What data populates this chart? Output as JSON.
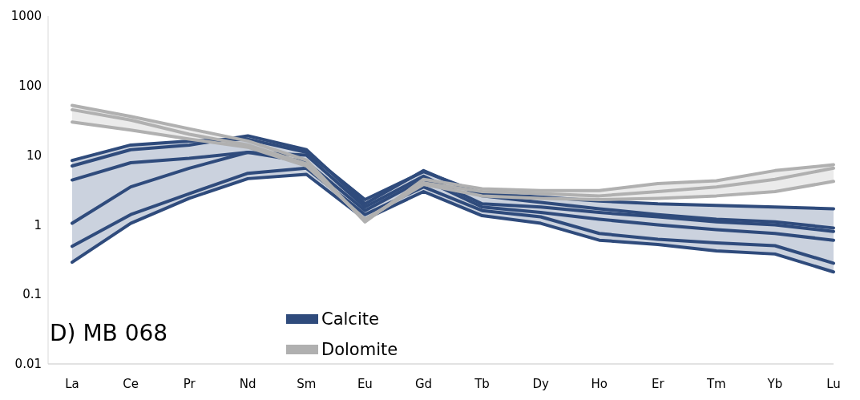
{
  "chart_data": {
    "type": "line",
    "log": true,
    "categories": [
      "La",
      "Ce",
      "Pr",
      "Nd",
      "Sm",
      "Eu",
      "Gd",
      "Tb",
      "Dy",
      "Ho",
      "Er",
      "Tm",
      "Yb",
      "Lu"
    ],
    "ylim": [
      0.01,
      1000
    ],
    "yticks": [
      0.01,
      0.1,
      1,
      10,
      100,
      1000
    ],
    "grid": false,
    "legend": "bottom left",
    "marker": "none",
    "line_style": "solid",
    "annotations": [
      "D) MB 068"
    ],
    "series": [
      {
        "name": "Calcite",
        "color": "#2f4b7c",
        "values": [
          8.4,
          14,
          16,
          17,
          11,
          2.3,
          5.8,
          2.8,
          2.5,
          2.2,
          2.0,
          1.9,
          1.8,
          1.7
        ],
        "lower": [
          0.29,
          1.05,
          2.4,
          4.6,
          5.3,
          1.2,
          3.0,
          1.35,
          1.05,
          0.6,
          0.52,
          0.42,
          0.38,
          0.21
        ],
        "upper": [
          8.4,
          14,
          16,
          19,
          12,
          2.3,
          6,
          2.8,
          2.5,
          2.2,
          2.0,
          1.9,
          1.8,
          1.7
        ]
      },
      {
        "color": "#2f4b7c",
        "values": [
          7,
          12,
          14,
          19,
          12,
          2.0,
          6,
          2.6,
          2.1,
          1.7,
          1.4,
          1.2,
          1.1,
          0.9
        ]
      },
      {
        "color": "#2f4b7c",
        "values": [
          4.4,
          7.8,
          9,
          11,
          10,
          1.8,
          5,
          2.0,
          1.8,
          1.5,
          1.3,
          1.1,
          1.0,
          0.8
        ]
      },
      {
        "color": "#2f4b7c",
        "values": [
          1.05,
          3.5,
          6.5,
          11,
          8,
          1.6,
          4.5,
          1.8,
          1.5,
          1.2,
          1.0,
          0.85,
          0.75,
          0.6
        ]
      },
      {
        "color": "#2f4b7c",
        "values": [
          0.49,
          1.4,
          2.8,
          5.5,
          6.5,
          1.4,
          3.5,
          1.6,
          1.3,
          0.75,
          0.62,
          0.55,
          0.5,
          0.28
        ]
      },
      {
        "color": "#2f4b7c",
        "values": [
          0.29,
          1.05,
          2.4,
          4.6,
          5.3,
          1.2,
          3.0,
          1.35,
          1.05,
          0.6,
          0.52,
          0.42,
          0.38,
          0.21
        ]
      },
      {
        "name": "Dolomite",
        "color": "#b0b0b0",
        "values": [
          52,
          36,
          24,
          16,
          8.5,
          1.1,
          4.5,
          3.3,
          3.1,
          3.1,
          3.9,
          4.3,
          6,
          7.3
        ],
        "lower": [
          30,
          23,
          17,
          13,
          7,
          1.1,
          3.8,
          2.6,
          2.4,
          2.3,
          2.4,
          2.6,
          3,
          4.2
        ],
        "upper": [
          52,
          36,
          24,
          16,
          8.5,
          1.2,
          4.5,
          3.3,
          3.1,
          3.1,
          3.9,
          4.3,
          6,
          7.3
        ]
      },
      {
        "color": "#b0b0b0",
        "values": [
          45,
          32,
          20,
          14,
          7.5,
          1.15,
          4,
          3.0,
          2.8,
          2.6,
          3.0,
          3.5,
          4.5,
          6.5
        ]
      },
      {
        "color": "#b0b0b0",
        "values": [
          30,
          23,
          17,
          13,
          7,
          1.2,
          3.8,
          2.6,
          2.4,
          2.3,
          2.4,
          2.6,
          3,
          4.2
        ]
      }
    ]
  }
}
